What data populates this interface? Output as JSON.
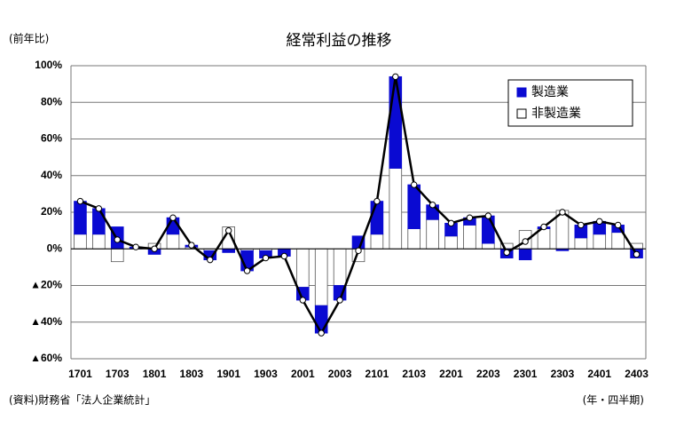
{
  "chart_data": {
    "type": "bar",
    "title": "経常利益の推移",
    "y_unit": "(前年比)",
    "x_unit": "(年・四半期)",
    "source": "(資料)財務省「法人企業統計」",
    "categories": [
      "1701",
      null,
      "1703",
      null,
      "1801",
      null,
      "1803",
      null,
      "1901",
      null,
      "1903",
      null,
      "2001",
      null,
      "2003",
      null,
      "2101",
      null,
      "2103",
      null,
      "2201",
      null,
      "2203",
      null,
      "2301",
      null,
      "2303",
      null,
      "2401",
      null,
      "2403"
    ],
    "series": [
      {
        "name": "製造業",
        "color": "#0a0ad2",
        "values": [
          18,
          14,
          12,
          1,
          -3,
          9,
          1,
          -5,
          -2,
          -11,
          -4,
          -4,
          -7,
          -15,
          -8,
          7,
          18,
          50,
          24,
          8,
          7,
          4,
          15,
          -5,
          -6,
          1,
          -1,
          7,
          7,
          4,
          -5
        ]
      },
      {
        "name": "非製造業",
        "color": "#ffffff",
        "values": [
          8,
          8,
          -7,
          0,
          3,
          8,
          1,
          -1,
          12,
          -1,
          -1,
          0,
          -21,
          -31,
          -20,
          -7,
          8,
          44,
          11,
          16,
          7,
          13,
          3,
          3,
          10,
          11,
          21,
          6,
          8,
          9,
          3
        ]
      }
    ],
    "line": {
      "color": "#000000",
      "values": [
        26,
        22,
        5,
        1,
        0,
        17,
        2,
        -6,
        10,
        -12,
        -5,
        -4,
        -28,
        -46,
        -28,
        -1,
        26,
        94,
        35,
        24,
        14,
        17,
        18,
        -2,
        4,
        12,
        20,
        13,
        15,
        13,
        -3
      ]
    },
    "ylim": [
      -60,
      100
    ],
    "yticks": [
      {
        "value": -60,
        "label": "▲60%"
      },
      {
        "value": -40,
        "label": "▲40%"
      },
      {
        "value": -20,
        "label": "▲20%"
      },
      {
        "value": 0,
        "label": "0%"
      },
      {
        "value": 20,
        "label": "20%"
      },
      {
        "value": 40,
        "label": "40%"
      },
      {
        "value": 60,
        "label": "60%"
      },
      {
        "value": 80,
        "label": "80%"
      },
      {
        "value": 100,
        "label": "100%"
      }
    ],
    "grid": true,
    "legend": "upper right"
  }
}
